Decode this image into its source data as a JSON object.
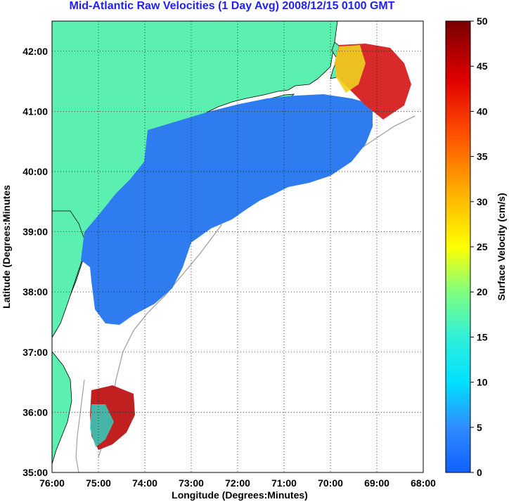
{
  "title": "Mid-Atlantic Raw Velocities (1 Day Avg) 2008/12/15 0100 GMT",
  "chart_data": {
    "type": "heatmap",
    "title": "Mid-Atlantic Raw Velocities (1 Day Avg) 2008/12/15 0100 GMT",
    "xlabel": "Longitude (Degrees:Minutes)",
    "ylabel": "Latitude (Degrees:Minutes",
    "x_ticks": [
      "76:00",
      "75:00",
      "74:00",
      "73:00",
      "72:00",
      "71:00",
      "70:00",
      "69:00",
      "68:00"
    ],
    "y_ticks": [
      "35:00",
      "36:00",
      "37:00",
      "38:00",
      "39:00",
      "40:00",
      "41:00",
      "42:00"
    ],
    "xlim": [
      -76,
      -68
    ],
    "ylim": [
      35,
      42.5
    ],
    "grid": "dotted",
    "colorbar": {
      "label": "Surface Velocity (cm/s)",
      "ticks": [
        "0",
        "5",
        "10",
        "15",
        "20",
        "25",
        "30",
        "35",
        "40",
        "45",
        "50"
      ],
      "range": [
        0,
        50
      ]
    }
  },
  "colors": {
    "land": "#5cf0b0",
    "water": "#ffffff",
    "title": "#1f1fff",
    "contour": "#a0a0a0"
  }
}
